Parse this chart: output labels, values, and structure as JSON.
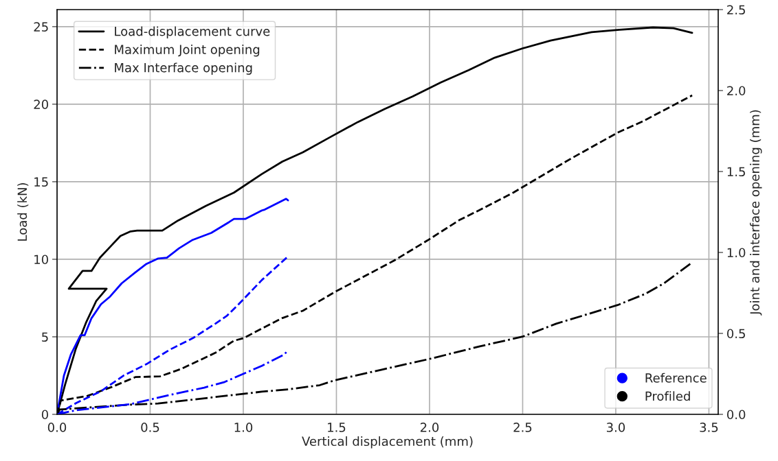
{
  "chart_data": {
    "type": "line",
    "xlabel": "Vertical displacement (mm)",
    "ylabel": "Load (kN)",
    "y2label": "Joint and interface opening (mm)",
    "xlim": [
      0,
      3.55
    ],
    "xticks": [
      {
        "value": 0,
        "label": "0.0"
      },
      0.5,
      {
        "value": 1,
        "label": "1.0"
      },
      1.5,
      {
        "value": 2,
        "label": "2.0"
      },
      2.5,
      {
        "value": 3,
        "label": "3.0"
      },
      3.5
    ],
    "ylim": [
      0,
      26.1
    ],
    "yticks": [
      0,
      5,
      10,
      15,
      20,
      25
    ],
    "y2lim": [
      0,
      2.5
    ],
    "y2ticks": [
      {
        "value": 0,
        "label": "0.0"
      },
      0.5,
      {
        "value": 1,
        "label": "1.0"
      },
      1.5,
      {
        "value": 2,
        "label": "2.0"
      },
      2.5
    ],
    "grid": true,
    "legend": "top left",
    "series": [
      {
        "name": "Load-displacement curve",
        "color": "#000000",
        "line_style": "solid",
        "x": [
          0,
          0.044,
          0.1,
          0.155,
          0.21,
          0.266,
          0.063,
          0.137,
          0.185,
          0.23,
          0.285,
          0.34,
          0.395,
          0.43,
          0.565,
          0.65,
          0.8,
          0.95,
          1.1,
          1.21,
          1.32,
          1.47,
          1.615,
          1.76,
          1.91,
          2.06,
          2.21,
          2.35,
          2.5,
          2.65,
          2.87,
          3.02,
          3.2,
          3.31,
          3.41
        ],
        "values": [
          0,
          1.95,
          4.2,
          5.9,
          7.3,
          8.1,
          8.1,
          9.25,
          9.25,
          10.1,
          10.8,
          11.5,
          11.8,
          11.85,
          11.85,
          12.5,
          13.45,
          14.3,
          15.5,
          16.3,
          16.9,
          17.9,
          18.85,
          19.7,
          20.5,
          21.4,
          22.2,
          23.0,
          23.6,
          24.1,
          24.65,
          24.8,
          24.95,
          24.9,
          24.6
        ]
      },
      {
        "color": "#0000ff",
        "line_style": "solid",
        "x": [
          0,
          0.037,
          0.074,
          0.126,
          0.148,
          0.185,
          0.236,
          0.285,
          0.347,
          0.42,
          0.48,
          0.543,
          0.59,
          0.654,
          0.728,
          0.828,
          0.924,
          0.95,
          1.01,
          1.1,
          1.115,
          1.23,
          1.24
        ],
        "values": [
          0,
          2.5,
          3.85,
          5.1,
          5.1,
          6.2,
          7.1,
          7.6,
          8.45,
          9.15,
          9.7,
          10.05,
          10.1,
          10.7,
          11.25,
          11.7,
          12.4,
          12.6,
          12.6,
          13.15,
          13.2,
          13.9,
          13.8
        ]
      },
      {
        "name": "Maximum Joint opening",
        "color": "#000000",
        "line_style": "dashed",
        "axis": "y2",
        "x": [
          0,
          0.02,
          0.163,
          0.296,
          0.42,
          0.554,
          0.665,
          0.85,
          0.95,
          1.0,
          1.1,
          1.21,
          1.32,
          1.49,
          1.81,
          1.99,
          2.16,
          2.3,
          2.45,
          2.76,
          3.01,
          3.145,
          3.41
        ],
        "values": [
          0,
          0.085,
          0.114,
          0.17,
          0.23,
          0.235,
          0.28,
          0.38,
          0.455,
          0.47,
          0.53,
          0.595,
          0.64,
          0.755,
          0.95,
          1.075,
          1.2,
          1.28,
          1.37,
          1.58,
          1.74,
          1.81,
          1.97
        ]
      },
      {
        "color": "#0000ff",
        "line_style": "dashed",
        "axis": "y2",
        "x": [
          0,
          0.103,
          0.236,
          0.358,
          0.48,
          0.606,
          0.728,
          0.85,
          0.913,
          0.975,
          1.1,
          1.235
        ],
        "values": [
          0,
          0.07,
          0.143,
          0.24,
          0.31,
          0.4,
          0.47,
          0.56,
          0.61,
          0.68,
          0.83,
          0.97
        ]
      },
      {
        "name": "Max Interface opening",
        "color": "#000000",
        "line_style": "dashdot",
        "axis": "y2",
        "x": [
          0,
          0.015,
          0.395,
          0.543,
          0.95,
          1.1,
          1.245,
          1.41,
          1.49,
          1.74,
          2.01,
          2.27,
          2.5,
          2.68,
          3.01,
          3.16,
          3.26,
          3.4
        ],
        "values": [
          0,
          0.03,
          0.06,
          0.067,
          0.12,
          0.14,
          0.155,
          0.18,
          0.21,
          0.275,
          0.345,
          0.42,
          0.48,
          0.56,
          0.675,
          0.745,
          0.81,
          0.93
        ]
      },
      {
        "color": "#0000ff",
        "line_style": "dashdot",
        "axis": "y2",
        "x": [
          0,
          0.1,
          0.395,
          0.606,
          0.79,
          0.9,
          1.1,
          1.22,
          1.24
        ],
        "values": [
          0,
          0.025,
          0.063,
          0.12,
          0.165,
          0.2,
          0.3,
          0.37,
          0.395
        ]
      }
    ],
    "annotations": [
      "Reference",
      "Profiled"
    ]
  }
}
